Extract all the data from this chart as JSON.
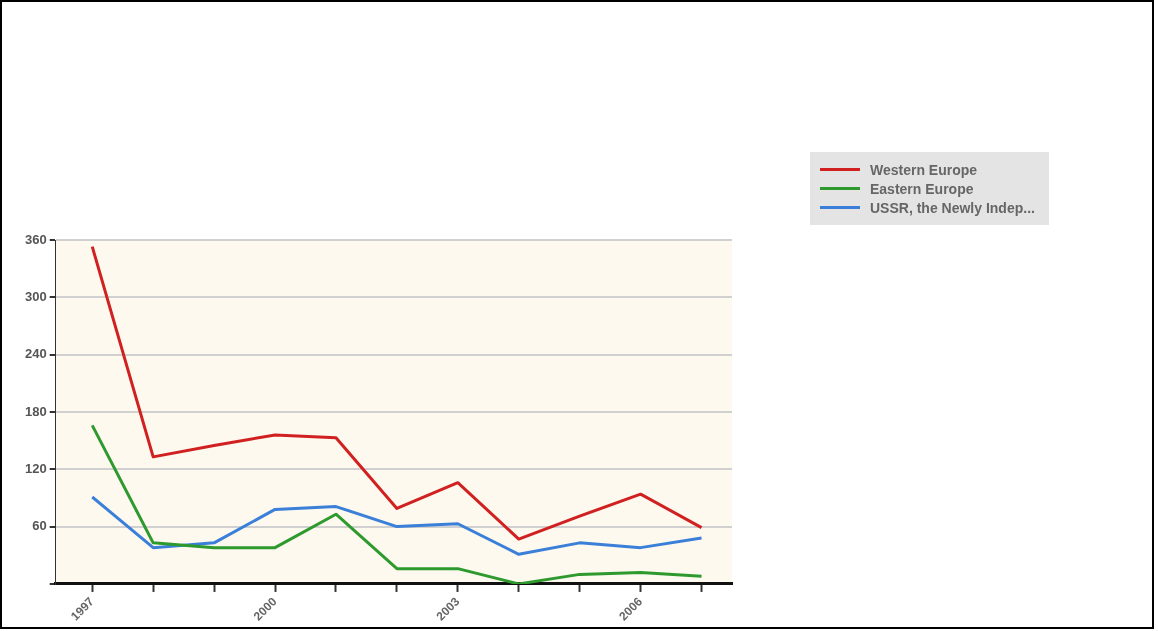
{
  "chart_data": {
    "type": "line",
    "x": [
      1997,
      1998,
      1999,
      2000,
      2001,
      2002,
      2003,
      2004,
      2005,
      2006,
      2007
    ],
    "series": [
      {
        "name": "Western Europe",
        "color": "#d02020",
        "values": [
          353,
          133,
          145,
          156,
          153,
          79,
          106,
          47,
          71,
          94,
          59
        ]
      },
      {
        "name": "Eastern Europe",
        "color": "#2e9a2e",
        "values": [
          166,
          43,
          38,
          38,
          73,
          16,
          16,
          0,
          10,
          12,
          8
        ]
      },
      {
        "name": "USSR, the Newly Indep...",
        "color": "#3a7fd8",
        "values": [
          91,
          38,
          43,
          78,
          81,
          60,
          63,
          31,
          43,
          38,
          48
        ]
      }
    ],
    "xlim": [
      1996.4,
      2007.5
    ],
    "xticks": [
      1997,
      {
        "value": 1998,
        "label": null
      },
      {
        "value": 1999,
        "label": null
      },
      2000,
      {
        "value": 2001,
        "label": null
      },
      {
        "value": 2002,
        "label": null
      },
      2003,
      {
        "value": 2004,
        "label": null
      },
      {
        "value": 2005,
        "label": null
      },
      2006,
      {
        "value": 2007,
        "label": null
      }
    ],
    "ylim": [
      0,
      360
    ],
    "yticks": [
      {
        "value": 0,
        "label": null
      },
      60,
      120,
      180,
      240,
      300,
      360
    ],
    "grid": "y",
    "legend": "top right",
    "marker": "none",
    "line_style": "solid"
  }
}
